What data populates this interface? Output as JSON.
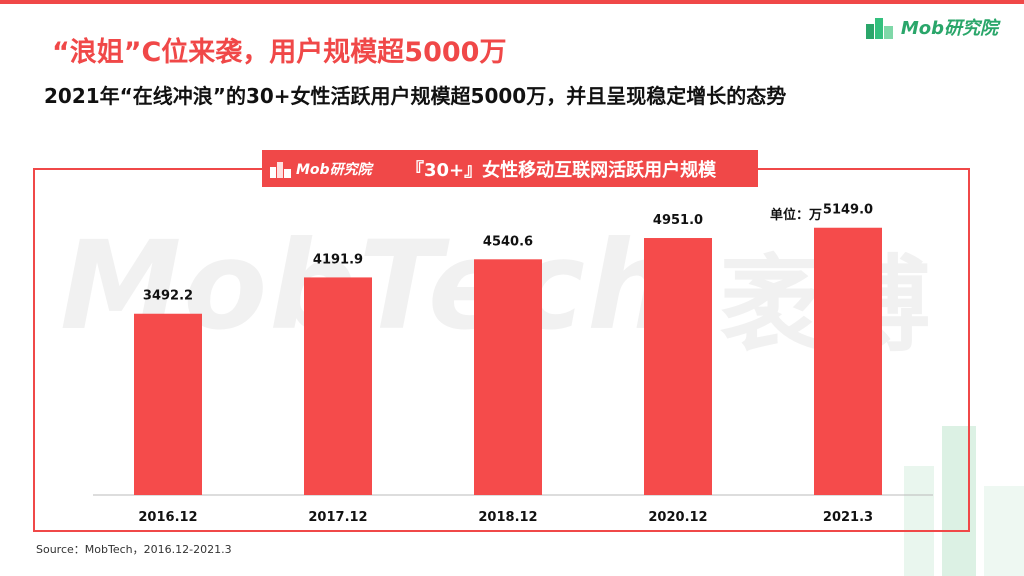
{
  "header": {
    "headline": "“浪姐”C位来袭，用户规模超5000万",
    "subheadline": "2021年“在线冲浪”的30+女性活跃用户规模超5000万，并且呈现稳定增长的态势"
  },
  "brand": {
    "name": "Mob研究院",
    "icon": "mob-logo-icon",
    "color": "#2aa66a"
  },
  "banner": {
    "logo_text": "Mob研究院",
    "title": "『30+』女性移动互联网活跃用户规模"
  },
  "watermark": {
    "text_en": "MobTech",
    "text_cn": "袤博"
  },
  "chart_data": {
    "type": "bar",
    "categories": [
      "2016.12",
      "2017.12",
      "2018.12",
      "2020.12",
      "2021.3"
    ],
    "values": [
      3492.2,
      4191.9,
      4540.6,
      4951.0,
      5149.0
    ],
    "value_labels": [
      "3492.2",
      "4191.9",
      "4540.6",
      "4951.0",
      "5149.0"
    ],
    "unit_label": "单位：万",
    "ylim": [
      0,
      6300
    ],
    "bar_color": "#f54b4b",
    "grid": false
  },
  "source": "Source：MobTech，2016.12-2021.3",
  "colors": {
    "accent": "#f04848"
  }
}
